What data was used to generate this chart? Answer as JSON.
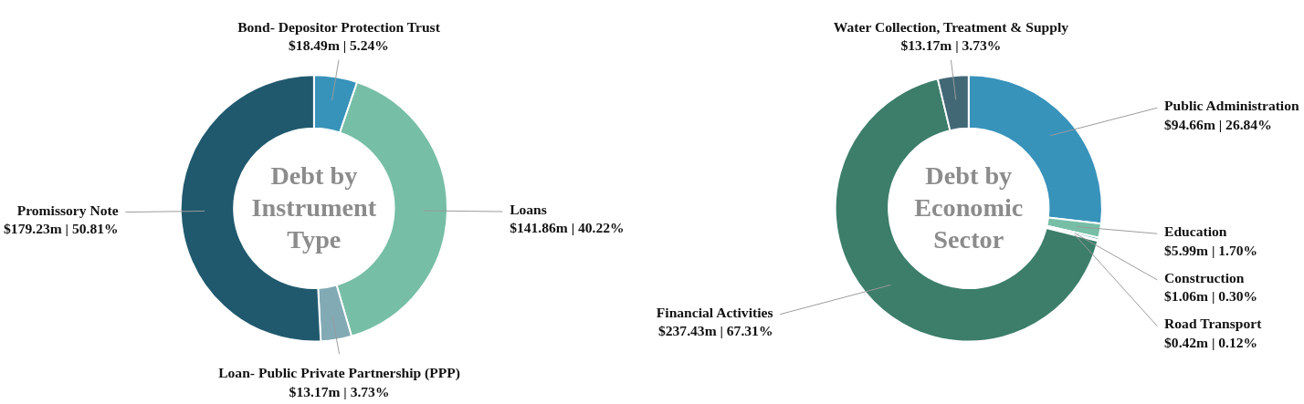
{
  "chart_data": [
    {
      "type": "donut",
      "title": "Debt by Instrument Type",
      "categories": [
        "Bond- Depositor Protection Trust",
        "Loans",
        "Loan- Public Private Partnership (PPP)",
        "Promissory Note"
      ],
      "values": [
        5.24,
        40.22,
        3.73,
        50.81
      ],
      "colors": [
        "#3893bb",
        "#77bea7",
        "#82aab5",
        "#20596e"
      ],
      "value_labels": [
        "$18.49m | 5.24%",
        "$141.86m | 40.22%",
        "$13.17m | 3.73%",
        "$179.23m | 50.81%"
      ]
    },
    {
      "type": "donut",
      "title": "Debt by Economic Sector",
      "categories": [
        "Public Administration",
        "Education",
        "Construction",
        "Road Transport",
        "Financial Activities",
        "Water Collection, Treatment & Supply"
      ],
      "values": [
        26.84,
        1.7,
        0.3,
        0.12,
        67.31,
        3.73
      ],
      "colors": [
        "#3893bb",
        "#77bea7",
        "#5e9aa8",
        "#a8ccc2",
        "#3c7e6a",
        "#426876"
      ],
      "value_labels": [
        "$94.66m | 26.84%",
        "$5.99m | 1.70%",
        "$1.06m | 0.30%",
        "$0.42m | 0.12%",
        "$237.43m | 67.31%",
        "$13.17m | 3.73%"
      ]
    }
  ]
}
